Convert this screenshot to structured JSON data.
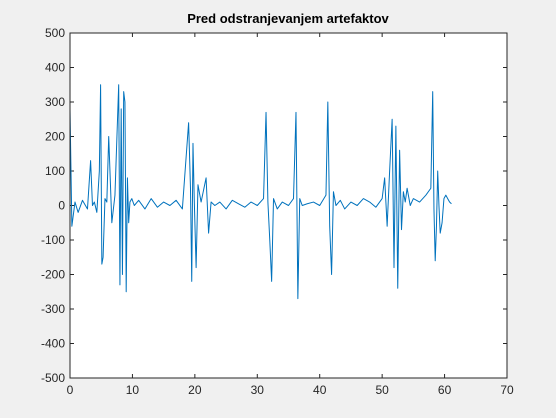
{
  "chart_data": {
    "type": "line",
    "title": "Pred odstranjevanjem artefaktov",
    "xlabel": "",
    "ylabel": "",
    "xlim": [
      0,
      70
    ],
    "ylim": [
      -500,
      500
    ],
    "xticks": [
      0,
      10,
      20,
      30,
      40,
      50,
      60,
      70
    ],
    "yticks": [
      -500,
      -400,
      -300,
      -200,
      -100,
      0,
      100,
      200,
      300,
      400,
      500
    ],
    "xtick_labels": [
      "0",
      "10",
      "20",
      "30",
      "40",
      "50",
      "60",
      "70"
    ],
    "ytick_labels": [
      "-500",
      "-400",
      "-300",
      "-200",
      "-100",
      "0",
      "100",
      "200",
      "300",
      "400",
      "500"
    ],
    "grid": false,
    "series": [
      {
        "color": "#0072bd",
        "x": [
          0,
          0.3,
          0.8,
          1.3,
          2.0,
          2.8,
          3.3,
          3.6,
          3.9,
          4.3,
          4.7,
          4.9,
          5.1,
          5.3,
          5.6,
          5.9,
          6.2,
          6.7,
          7.2,
          7.8,
          8.0,
          8.2,
          8.4,
          8.6,
          8.8,
          9.0,
          9.2,
          9.4,
          9.6,
          9.9,
          10.3,
          11,
          12,
          13,
          14,
          15,
          16,
          17,
          18,
          19.0,
          19.3,
          19.5,
          19.7,
          19.9,
          20.2,
          20.5,
          21,
          21.8,
          22.2,
          22.6,
          23.2,
          24,
          25,
          26,
          27,
          28,
          29,
          30,
          31.0,
          31.4,
          31.7,
          32.0,
          32.3,
          32.6,
          33.2,
          34,
          35,
          35.8,
          36.2,
          36.5,
          36.8,
          37.2,
          38,
          39,
          40,
          41.0,
          41.3,
          41.6,
          41.9,
          42.2,
          42.6,
          43.3,
          44,
          45,
          46,
          47,
          48,
          49,
          50.0,
          50.4,
          50.8,
          51.2,
          51.6,
          51.9,
          52.2,
          52.5,
          52.8,
          53.1,
          53.4,
          53.7,
          54.0,
          54.5,
          55,
          56,
          57,
          57.8,
          58.1,
          58.3,
          58.5,
          58.7,
          58.9,
          59.1,
          59.3,
          59.6,
          59.9,
          60.2,
          60.5,
          60.8,
          61.1
        ],
        "y": [
          280,
          -60,
          10,
          -20,
          15,
          -10,
          130,
          0,
          10,
          -20,
          100,
          350,
          -170,
          -150,
          20,
          10,
          200,
          -50,
          30,
          350,
          -230,
          280,
          -200,
          330,
          300,
          -250,
          80,
          -50,
          10,
          20,
          0,
          15,
          -10,
          20,
          -5,
          10,
          0,
          15,
          -10,
          240,
          50,
          -220,
          180,
          20,
          -180,
          60,
          10,
          80,
          -80,
          10,
          0,
          10,
          -10,
          15,
          5,
          -5,
          10,
          0,
          20,
          270,
          10,
          -100,
          -220,
          20,
          -10,
          10,
          0,
          20,
          270,
          -270,
          20,
          0,
          5,
          10,
          0,
          30,
          300,
          -60,
          -200,
          40,
          0,
          15,
          -10,
          10,
          0,
          20,
          10,
          -5,
          20,
          80,
          -60,
          100,
          250,
          -180,
          230,
          -240,
          160,
          -70,
          40,
          10,
          50,
          0,
          20,
          10,
          30,
          50,
          330,
          -10,
          -160,
          -60,
          100,
          0,
          -80,
          -50,
          20,
          30,
          20,
          10,
          5
        ]
      }
    ]
  }
}
